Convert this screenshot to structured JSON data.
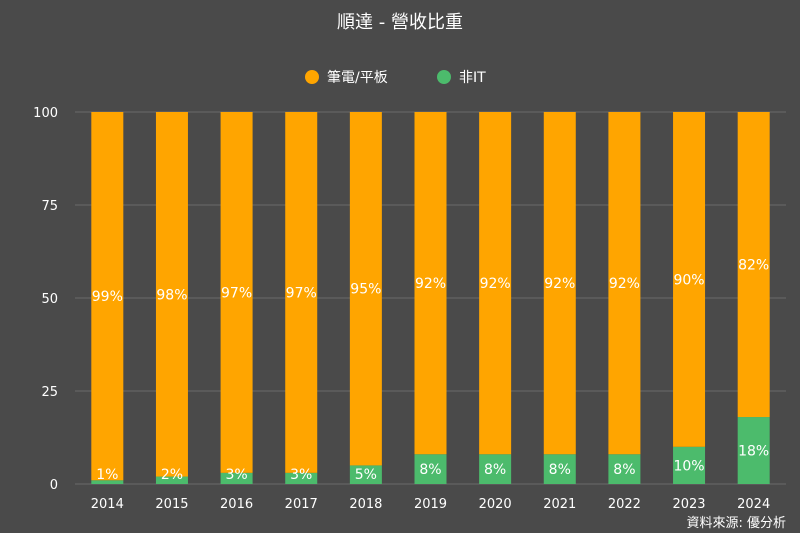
{
  "chart_data": {
    "type": "bar",
    "stacked": true,
    "title": "順達 - 營收比重",
    "categories": [
      "2014",
      "2015",
      "2016",
      "2017",
      "2018",
      "2019",
      "2020",
      "2021",
      "2022",
      "2023",
      "2024"
    ],
    "series": [
      {
        "name": "非IT",
        "color": "#4cbb6c",
        "values": [
          1,
          2,
          3,
          3,
          5,
          8,
          8,
          8,
          8,
          10,
          18
        ],
        "labels": [
          "1%",
          "2%",
          "3%",
          "3%",
          "5%",
          "8%",
          "8%",
          "8%",
          "8%",
          "10%",
          "18%"
        ]
      },
      {
        "name": "筆電/平板",
        "color": "#ffa500",
        "values": [
          99,
          98,
          97,
          97,
          95,
          92,
          92,
          92,
          92,
          90,
          82
        ],
        "labels": [
          "99%",
          "98%",
          "97%",
          "97%",
          "95%",
          "92%",
          "92%",
          "92%",
          "92%",
          "90%",
          "82%"
        ]
      }
    ],
    "legend_order": [
      "筆電/平板",
      "非IT"
    ],
    "ylim": [
      0,
      100
    ],
    "yticks": [
      "0",
      "25",
      "50",
      "75",
      "100"
    ],
    "grid": true,
    "legend_position": "top-center"
  },
  "source": "資料來源: 優分析"
}
